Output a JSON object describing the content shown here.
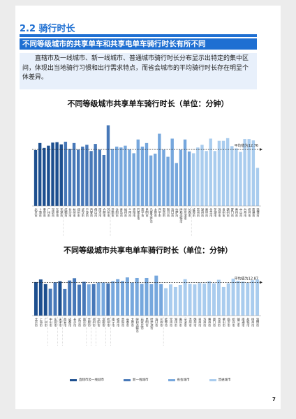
{
  "section": {
    "title": "2.2 骑行时长",
    "subtitle": "不同等级城市的共享单车和共享电单车骑行时长有所不同",
    "paragraph": "直辖市及一线城市、新一线城市、普通城市骑行时长分布显示出特定的集中区间，体现出当地骑行习惯和出行需求特点，而省会城市的平均骑行时长存在明显个体差异。"
  },
  "legend": [
    {
      "label": "直辖市及一线城市",
      "color": "#1d4f8f"
    },
    {
      "label": "新一线城市",
      "color": "#4778b8"
    },
    {
      "label": "省会城市",
      "color": "#76a7dd"
    },
    {
      "label": "普通城市",
      "color": "#a9ccee"
    }
  ],
  "page_number": "7",
  "chart_data": [
    {
      "type": "bar",
      "title": "不同等级城市共享单车骑行时长（单位：分钟）",
      "avg_label": "平均值为12.76",
      "avg": 12.76,
      "ylim": [
        0,
        20
      ],
      "categories": [
        "北京市",
        "上海市",
        "重庆市",
        "广州市",
        "深圳市",
        "东莞市",
        "天津市",
        "成都市",
        "长沙市",
        "杭州市",
        "郑州市",
        "武汉市",
        "宁波市",
        "西安市",
        "佛山市",
        "南京市",
        "合肥市",
        "苏州市",
        "济南市",
        "沈阳市",
        "青岛市",
        "福州市",
        "兰州市",
        "贵阳市",
        "石家庄市",
        "南宁市",
        "昆明市",
        "乌鲁木齐市",
        "太原市",
        "西宁市",
        "南昌市",
        "银川市",
        "海口市",
        "拉萨市",
        "呼和浩特市",
        "哈尔滨市",
        "长春市",
        "蚌埠市",
        "常州市",
        "湖州市",
        "嘉兴市",
        "金华市",
        "芜湖市",
        "温州市",
        "泉州市",
        "赣州市",
        "厦门市",
        "惠州市",
        "中山市",
        "台州市",
        "绍兴市",
        "南通市",
        "淄博市"
      ],
      "values": [
        12.6,
        14.2,
        13.1,
        13.6,
        14.3,
        14.4,
        13.9,
        14.5,
        12.9,
        14.2,
        12.7,
        13.4,
        13.8,
        12.4,
        14.0,
        12.7,
        11.5,
        18.2,
        12.9,
        13.4,
        13.2,
        13.6,
        12.8,
        11.9,
        15.0,
        13.4,
        14.2,
        11.4,
        11.8,
        16.3,
        12.7,
        11.1,
        15.2,
        9.7,
        12.7,
        15.0,
        12.3,
        11.9,
        13.2,
        13.8,
        12.4,
        15.2,
        12.4,
        14.7,
        14.7,
        15.3,
        13.5,
        13.0,
        12.2,
        15.1,
        15.1,
        14.8,
        8.6
      ],
      "levels": [
        0,
        0,
        0,
        0,
        0,
        0,
        0,
        1,
        1,
        1,
        1,
        1,
        1,
        1,
        1,
        1,
        1,
        1,
        2,
        2,
        2,
        2,
        2,
        2,
        2,
        2,
        2,
        2,
        2,
        2,
        2,
        2,
        2,
        2,
        2,
        2,
        2,
        3,
        3,
        3,
        3,
        3,
        3,
        3,
        3,
        3,
        3,
        3,
        3,
        3,
        3,
        3,
        3
      ]
    },
    {
      "type": "bar",
      "title": "不同等级城市共享电单车骑行时长（单位：分钟）",
      "avg_label": "平均值为12.87",
      "avg": 12.87,
      "ylim": [
        0,
        20
      ],
      "categories": [
        "北京市",
        "上海市",
        "广州市",
        "中山市",
        "东莞市",
        "天津市",
        "西安市",
        "成都市",
        "长沙市",
        "武汉市",
        "南京市",
        "合肥市",
        "郑州市",
        "沈阳市",
        "济南市",
        "杭州市",
        "南宁市",
        "福州市",
        "贵阳市",
        "长春市",
        "太原市",
        "呼和浩特市",
        "石家庄市",
        "昆明市",
        "哈尔滨市",
        "海口市",
        "兰州市",
        "蚌埠市",
        "常州市",
        "湖州市",
        "嘉兴市",
        "宁波市",
        "温州市",
        "赣州市",
        "泉州市",
        "苏州市",
        "惠州市",
        "厦门市",
        "漳州市",
        "佛山市",
        "临沂市",
        "绍兴市",
        "镇江市",
        "南通市",
        "盐城市",
        "扬州市",
        "淄博市"
      ],
      "values": [
        13.0,
        14.0,
        12.2,
        10.4,
        12.9,
        13.3,
        10.3,
        13.6,
        14.5,
        12.0,
        13.1,
        12.1,
        12.2,
        12.8,
        12.8,
        12.5,
        13.3,
        14.1,
        13.4,
        14.8,
        12.8,
        14.6,
        12.3,
        14.6,
        12.2,
        15.5,
        12.2,
        10.6,
        12.1,
        11.1,
        11.9,
        14.1,
        12.3,
        12.1,
        12.6,
        12.4,
        13.3,
        12.5,
        13.9,
        11.1,
        12.5,
        14.3,
        13.5,
        13.2,
        12.7,
        13.7,
        14.0
      ],
      "levels": [
        0,
        0,
        0,
        1,
        1,
        0,
        1,
        1,
        1,
        1,
        1,
        2,
        1,
        2,
        2,
        1,
        2,
        2,
        2,
        2,
        2,
        2,
        2,
        2,
        2,
        2,
        2,
        3,
        3,
        3,
        3,
        3,
        3,
        3,
        3,
        3,
        3,
        3,
        3,
        3,
        3,
        3,
        3,
        3,
        3,
        3,
        3
      ]
    }
  ]
}
